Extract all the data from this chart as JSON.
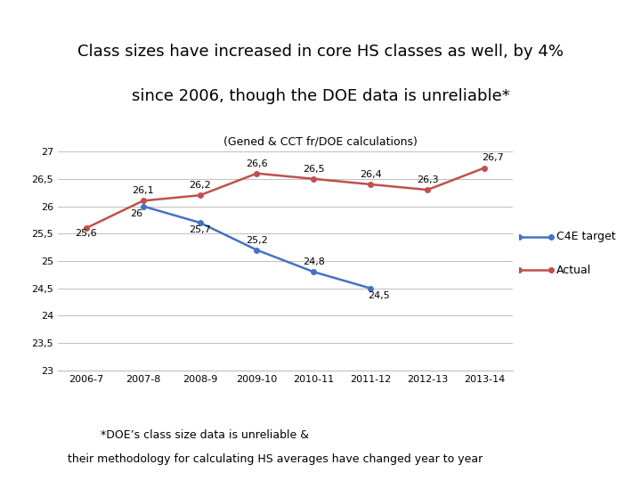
{
  "title_line1": "Class sizes have increased in core HS classes as well, by 4%",
  "title_line2": "since 2006, though the DOE data is unreliable*",
  "subtitle": "(Gened & CCT fr/DOE calculations)",
  "footnote_line1": "*DOE’s class size data is unreliable &",
  "footnote_line2": "their methodology for calculating HS averages have changed year to year",
  "x_labels": [
    "2006-7",
    "2007-8",
    "2008-9",
    "2009-10",
    "2010-11",
    "2011-12",
    "2012-13",
    "2013-14"
  ],
  "actual_values": [
    25.6,
    26.1,
    26.2,
    26.6,
    26.5,
    26.4,
    26.3,
    26.7
  ],
  "c4e_x_indices": [
    1,
    2,
    3,
    4,
    5
  ],
  "c4e_values": [
    26.0,
    25.7,
    25.2,
    24.8,
    24.5
  ],
  "actual_label_texts": [
    "25,6",
    "26,1",
    "26,2",
    "26,6",
    "26,5",
    "26,4",
    "26,3",
    "26,7"
  ],
  "actual_label_offsets_x": [
    0.0,
    0.0,
    0.0,
    0.0,
    0.0,
    0.0,
    0.0,
    0.15
  ],
  "actual_label_offsets_y": [
    -0.18,
    0.1,
    0.1,
    0.1,
    0.1,
    0.1,
    0.1,
    0.1
  ],
  "c4e_label_texts": [
    "26",
    "25,7",
    "25,2",
    "24,8",
    "24,5"
  ],
  "c4e_label_offsets_x": [
    -0.12,
    0.0,
    0.0,
    0.0,
    0.15
  ],
  "c4e_label_offsets_y": [
    -0.22,
    -0.22,
    0.1,
    0.1,
    -0.22
  ],
  "ylim": [
    23,
    27
  ],
  "yticks": [
    23,
    23.5,
    24,
    24.5,
    25,
    25.5,
    26,
    26.5,
    27
  ],
  "ytick_labels": [
    "23",
    "23,5",
    "24",
    "24,5",
    "25",
    "25,5",
    "26",
    "26,5",
    "27"
  ],
  "c4e_color": "#4472C4",
  "actual_color": "#C0504D",
  "title_bg_color": "#DAE3F3",
  "background_color": "#FFFFFF",
  "grid_color": "#BFBFBF",
  "legend_c4e": "C4E target",
  "legend_actual": "Actual",
  "title_fontsize": 13,
  "subtitle_fontsize": 9,
  "footnote_fontsize": 9,
  "tick_fontsize": 8,
  "data_label_fontsize": 8,
  "legend_fontsize": 9
}
